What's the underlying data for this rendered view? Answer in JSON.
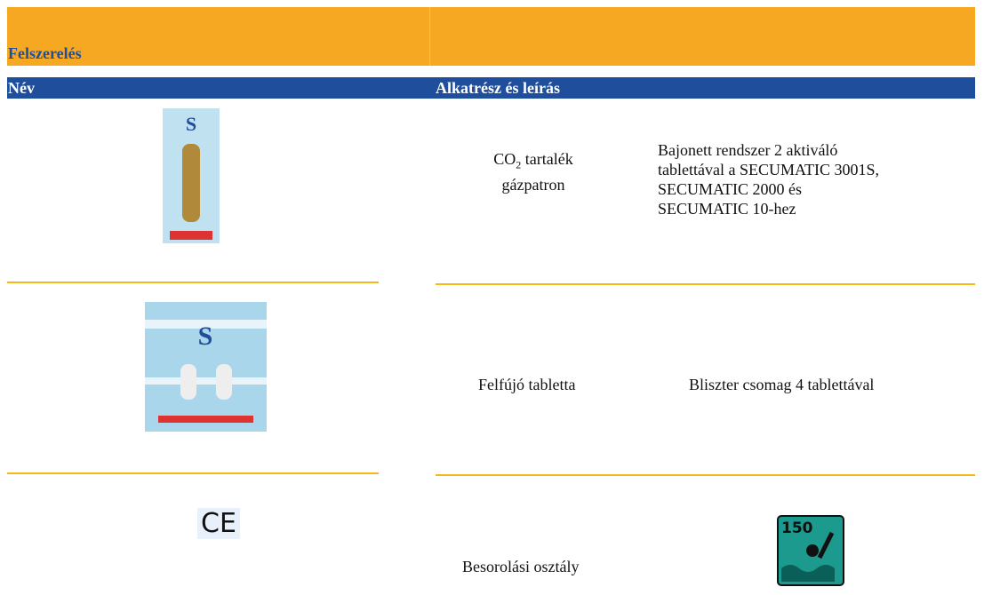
{
  "header": {
    "title": "Felszerelés"
  },
  "columns": [
    "Név",
    "Alkatrész és leírás"
  ],
  "rows": [
    {
      "part_prefix": "CO",
      "part_subscript": "2",
      "part_suffix": "tartalék",
      "part_line2": "gázpatron",
      "description_lines": [
        "Bajonett rendszer 2 aktiváló",
        "tablettával a SECUMATIC 3001S,",
        "SECUMATIC 2000 és",
        "SECUMATIC 10-hez"
      ]
    },
    {
      "part": "Felfújó tabletta",
      "description": "Bliszter csomag 4 tablettával"
    },
    {
      "symbol": "CE",
      "part": "Besorolási osztály",
      "icon_label": "150"
    }
  ]
}
